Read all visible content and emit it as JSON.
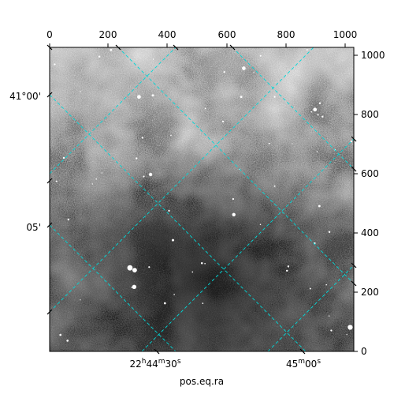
{
  "image_panel": {
    "colormap": "grayscale",
    "grid_color": "#00d8d8",
    "image_description": "grayscale astronomical sky image with scattered white stars, darker region toward lower center"
  },
  "pixel_axes": {
    "top_ticks": [
      "0",
      "200",
      "400",
      "600",
      "800",
      "1000"
    ],
    "right_ticks": [
      "0",
      "200",
      "400",
      "600",
      "800",
      "1000"
    ]
  },
  "world_axes": {
    "dec_ticks": [
      {
        "label": "41°00'"
      },
      {
        "label": "05'"
      }
    ],
    "ra_ticks": [
      {
        "h": "22",
        "m": "44",
        "s": "30",
        "unit_h": "h",
        "unit_m": "m",
        "unit_s": "s"
      },
      {
        "m": "45",
        "s": "00",
        "unit_m": "m",
        "unit_s": "s"
      }
    ],
    "xlabel": "pos.eq.ra"
  }
}
